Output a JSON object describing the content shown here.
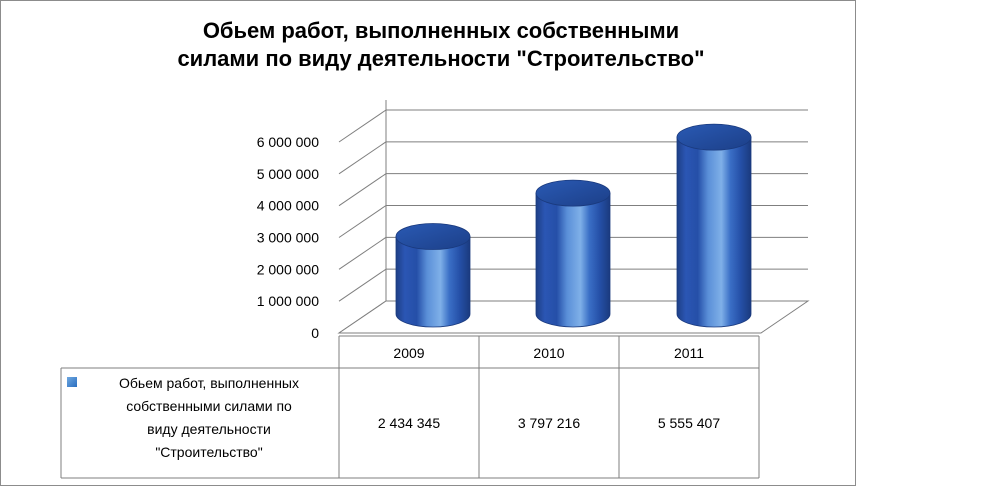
{
  "chart_data": {
    "type": "bar",
    "title": "Обьем работ, выполненных собственными\nсилами  по виду деятельности \"Строительство\"",
    "categories": [
      "2009",
      "2010",
      "2011"
    ],
    "series": [
      {
        "name_lines": [
          "Обьем работ, выполненных",
          "собственными силами  по",
          "виду деятельности",
          "\"Строительство\""
        ],
        "values": [
          2434345,
          3797216,
          5555407
        ],
        "value_labels": [
          "2 434 345",
          "3 797 216",
          "5 555 407"
        ],
        "color": "#3b6fc4"
      }
    ],
    "y_ticks": [
      "0",
      "1 000 000",
      "2 000 000",
      "3 000 000",
      "4 000 000",
      "5 000 000",
      "6 000 000"
    ],
    "ylim": [
      0,
      6000000
    ],
    "grid": true,
    "data_table": true,
    "legend": "in-data-table"
  }
}
